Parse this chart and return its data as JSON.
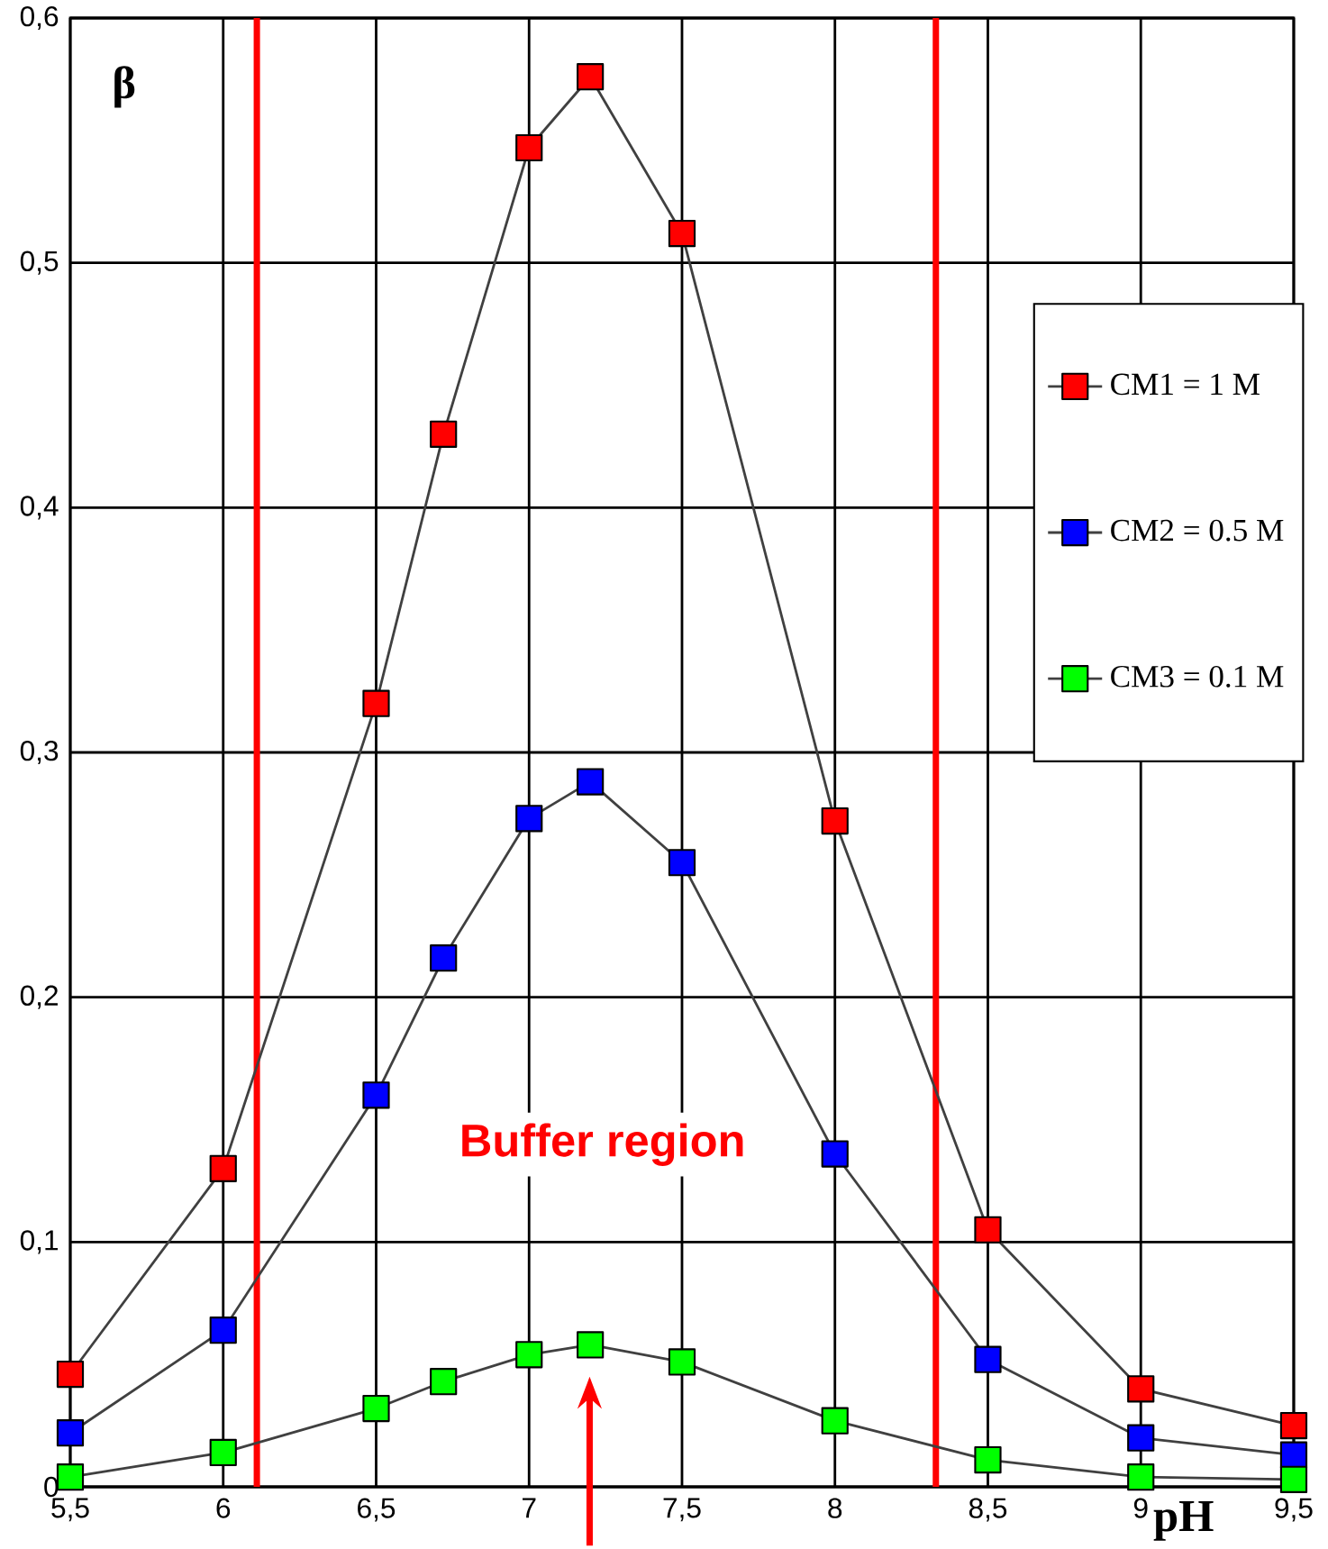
{
  "chart_data": {
    "type": "line",
    "xlabel": "pH",
    "ylabel": "β",
    "xlim": [
      5.5,
      9.5
    ],
    "ylim": [
      0,
      0.6
    ],
    "xticks": [
      {
        "value": 5.5,
        "label": "5,5"
      },
      6,
      {
        "value": 6.5,
        "label": "6,5"
      },
      7,
      {
        "value": 7.5,
        "label": "7,5"
      },
      8,
      {
        "value": 8.5,
        "label": "8,5"
      },
      9,
      {
        "value": 9.5,
        "label": "9,5"
      }
    ],
    "yticks": [
      0,
      {
        "value": 0.1,
        "label": "0,1"
      },
      {
        "value": 0.2,
        "label": "0,2"
      },
      {
        "value": 0.3,
        "label": "0,3"
      },
      {
        "value": 0.4,
        "label": "0,4"
      },
      {
        "value": 0.5,
        "label": "0,5"
      },
      {
        "value": 0.6,
        "label": "0,6"
      }
    ],
    "x": [
      5.5,
      6,
      6.5,
      6.72,
      7,
      7.2,
      7.5,
      8,
      8.5,
      9,
      9.5
    ],
    "series": [
      {
        "name": "CM1 = 1 M",
        "color": "#ff0000",
        "values": [
          0.046,
          0.13,
          0.32,
          0.43,
          0.547,
          0.576,
          0.512,
          0.272,
          0.105,
          0.04,
          0.025
        ]
      },
      {
        "name": "CM2 = 0.5 M",
        "color": "#0000ff",
        "values": [
          0.022,
          0.064,
          0.16,
          0.216,
          0.273,
          0.288,
          0.255,
          0.136,
          0.052,
          0.02,
          0.013
        ]
      },
      {
        "name": "CM3 = 0.1 M",
        "color": "#00ff00",
        "values": [
          0.004,
          0.014,
          0.032,
          0.043,
          0.054,
          0.058,
          0.051,
          0.027,
          0.011,
          0.004,
          0.003
        ]
      }
    ],
    "ref_lines": [
      {
        "axis": "x",
        "value": 6.11,
        "color": "#ff0000"
      },
      {
        "axis": "x",
        "value": 8.33,
        "color": "#ff0000"
      }
    ],
    "annotations": [
      "Buffer region"
    ],
    "grid": true,
    "legend": "right",
    "marker": "square",
    "line_style": "solid"
  }
}
